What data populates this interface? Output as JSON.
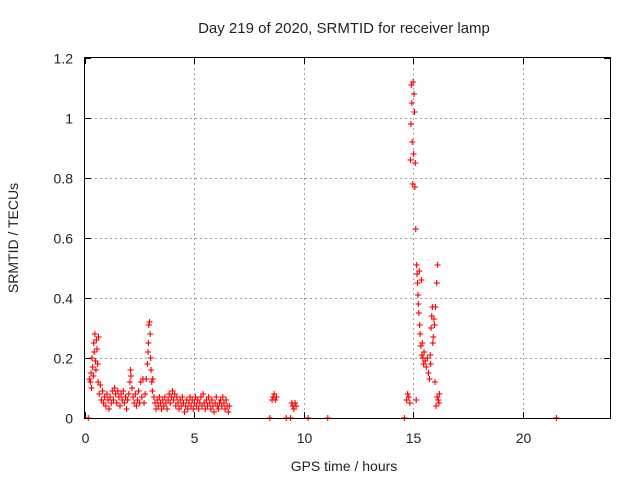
{
  "chart_data": {
    "type": "scatter",
    "title": "Day 219 of 2020, SRMTID for receiver lamp",
    "xlabel": "GPS time / hours",
    "ylabel": "SRMTID / TECUs",
    "xlim": [
      0,
      24
    ],
    "ylim": [
      0,
      1.2
    ],
    "x_ticks": [
      0,
      5,
      10,
      15,
      20
    ],
    "y_ticks": [
      0,
      0.2,
      0.4,
      0.6,
      0.8,
      1.0,
      1.2
    ],
    "x_tick_labels": [
      "0",
      "5",
      "10",
      "15",
      "20"
    ],
    "y_tick_labels": [
      "0",
      "0.2",
      "0.4",
      "0.6",
      "0.8",
      "1",
      "1.2"
    ],
    "grid": true,
    "marker": "plus",
    "series": [
      {
        "name": "SRMTID",
        "color": "#ff0000",
        "points": [
          [
            0.15,
            0.0
          ],
          [
            0.2,
            0.13
          ],
          [
            0.25,
            0.12
          ],
          [
            0.28,
            0.15
          ],
          [
            0.3,
            0.1
          ],
          [
            0.32,
            0.2
          ],
          [
            0.35,
            0.17
          ],
          [
            0.38,
            0.14
          ],
          [
            0.4,
            0.25
          ],
          [
            0.42,
            0.22
          ],
          [
            0.45,
            0.28
          ],
          [
            0.48,
            0.19
          ],
          [
            0.5,
            0.16
          ],
          [
            0.52,
            0.26
          ],
          [
            0.55,
            0.23
          ],
          [
            0.58,
            0.18
          ],
          [
            0.6,
            0.12
          ],
          [
            0.62,
            0.27
          ],
          [
            0.65,
            0.08
          ],
          [
            0.7,
            0.11
          ],
          [
            0.75,
            0.06
          ],
          [
            0.8,
            0.09
          ],
          [
            0.85,
            0.05
          ],
          [
            0.9,
            0.07
          ],
          [
            0.95,
            0.04
          ],
          [
            1.0,
            0.08
          ],
          [
            1.05,
            0.06
          ],
          [
            1.1,
            0.03
          ],
          [
            1.15,
            0.07
          ],
          [
            1.2,
            0.05
          ],
          [
            1.25,
            0.09
          ],
          [
            1.3,
            0.06
          ],
          [
            1.35,
            0.1
          ],
          [
            1.4,
            0.08
          ],
          [
            1.45,
            0.05
          ],
          [
            1.5,
            0.09
          ],
          [
            1.55,
            0.07
          ],
          [
            1.6,
            0.04
          ],
          [
            1.65,
            0.08
          ],
          [
            1.7,
            0.06
          ],
          [
            1.75,
            0.09
          ],
          [
            1.8,
            0.05
          ],
          [
            1.85,
            0.07
          ],
          [
            1.9,
            0.03
          ],
          [
            1.95,
            0.06
          ],
          [
            2.0,
            0.08
          ],
          [
            2.05,
            0.12
          ],
          [
            2.08,
            0.16
          ],
          [
            2.1,
            0.14
          ],
          [
            2.15,
            0.1
          ],
          [
            2.2,
            0.07
          ],
          [
            2.25,
            0.05
          ],
          [
            2.3,
            0.08
          ],
          [
            2.35,
            0.04
          ],
          [
            2.4,
            0.06
          ],
          [
            2.45,
            0.09
          ],
          [
            2.5,
            0.05
          ],
          [
            2.55,
            0.12
          ],
          [
            2.6,
            0.07
          ],
          [
            2.65,
            0.13
          ],
          [
            2.7,
            0.05
          ],
          [
            2.75,
            0.08
          ],
          [
            2.8,
            0.13
          ],
          [
            2.85,
            0.18
          ],
          [
            2.88,
            0.22
          ],
          [
            2.9,
            0.25
          ],
          [
            2.92,
            0.31
          ],
          [
            2.95,
            0.32
          ],
          [
            2.98,
            0.28
          ],
          [
            3.0,
            0.2
          ],
          [
            3.02,
            0.16
          ],
          [
            3.05,
            0.12
          ],
          [
            3.08,
            0.09
          ],
          [
            3.1,
            0.13
          ],
          [
            3.15,
            0.07
          ],
          [
            3.2,
            0.05
          ],
          [
            3.25,
            0.03
          ],
          [
            3.3,
            0.06
          ],
          [
            3.35,
            0.04
          ],
          [
            3.4,
            0.07
          ],
          [
            3.45,
            0.05
          ],
          [
            3.5,
            0.03
          ],
          [
            3.55,
            0.06
          ],
          [
            3.6,
            0.04
          ],
          [
            3.65,
            0.07
          ],
          [
            3.7,
            0.05
          ],
          [
            3.75,
            0.03
          ],
          [
            3.8,
            0.06
          ],
          [
            3.85,
            0.08
          ],
          [
            3.9,
            0.05
          ],
          [
            3.95,
            0.07
          ],
          [
            4.0,
            0.09
          ],
          [
            4.05,
            0.06
          ],
          [
            4.1,
            0.08
          ],
          [
            4.15,
            0.04
          ],
          [
            4.2,
            0.07
          ],
          [
            4.25,
            0.05
          ],
          [
            4.3,
            0.03
          ],
          [
            4.35,
            0.06
          ],
          [
            4.4,
            0.04
          ],
          [
            4.45,
            0.07
          ],
          [
            4.5,
            0.05
          ],
          [
            4.55,
            0.02
          ],
          [
            4.6,
            0.04
          ],
          [
            4.65,
            0.06
          ],
          [
            4.7,
            0.03
          ],
          [
            4.75,
            0.05
          ],
          [
            4.8,
            0.07
          ],
          [
            4.85,
            0.04
          ],
          [
            4.9,
            0.06
          ],
          [
            4.95,
            0.03
          ],
          [
            5.0,
            0.05
          ],
          [
            5.05,
            0.07
          ],
          [
            5.1,
            0.04
          ],
          [
            5.15,
            0.06
          ],
          [
            5.2,
            0.03
          ],
          [
            5.25,
            0.05
          ],
          [
            5.3,
            0.07
          ],
          [
            5.35,
            0.04
          ],
          [
            5.4,
            0.08
          ],
          [
            5.45,
            0.05
          ],
          [
            5.5,
            0.03
          ],
          [
            5.55,
            0.06
          ],
          [
            5.6,
            0.04
          ],
          [
            5.65,
            0.07
          ],
          [
            5.7,
            0.05
          ],
          [
            5.75,
            0.03
          ],
          [
            5.8,
            0.06
          ],
          [
            5.85,
            0.04
          ],
          [
            5.9,
            0.02
          ],
          [
            5.95,
            0.05
          ],
          [
            6.0,
            0.07
          ],
          [
            6.05,
            0.04
          ],
          [
            6.1,
            0.03
          ],
          [
            6.15,
            0.05
          ],
          [
            6.2,
            0.06
          ],
          [
            6.25,
            0.04
          ],
          [
            6.3,
            0.07
          ],
          [
            6.35,
            0.05
          ],
          [
            6.4,
            0.03
          ],
          [
            6.45,
            0.06
          ],
          [
            6.5,
            0.04
          ],
          [
            6.55,
            0.02
          ],
          [
            6.6,
            0.04
          ],
          [
            8.45,
            0.0
          ],
          [
            8.55,
            0.06
          ],
          [
            8.6,
            0.07
          ],
          [
            8.65,
            0.08
          ],
          [
            8.7,
            0.06
          ],
          [
            8.75,
            0.07
          ],
          [
            9.2,
            0.0
          ],
          [
            9.4,
            0.0
          ],
          [
            9.45,
            0.05
          ],
          [
            9.5,
            0.04
          ],
          [
            9.55,
            0.03
          ],
          [
            9.6,
            0.05
          ],
          [
            9.65,
            0.04
          ],
          [
            10.2,
            0.0
          ],
          [
            11.1,
            0.0
          ],
          [
            14.6,
            0.0
          ],
          [
            14.7,
            0.06
          ],
          [
            14.75,
            0.08
          ],
          [
            14.8,
            0.07
          ],
          [
            14.85,
            0.05
          ],
          [
            14.88,
            0.86
          ],
          [
            14.9,
            0.98
          ],
          [
            14.92,
            1.11
          ],
          [
            14.94,
            1.05
          ],
          [
            14.96,
            0.92
          ],
          [
            14.98,
            0.78
          ],
          [
            15.0,
            1.12
          ],
          [
            15.02,
            0.88
          ],
          [
            15.04,
            1.08
          ],
          [
            15.06,
            1.02
          ],
          [
            15.08,
            0.77
          ],
          [
            15.1,
            0.85
          ],
          [
            15.12,
            0.63
          ],
          [
            15.14,
            0.06
          ],
          [
            15.16,
            0.51
          ],
          [
            15.18,
            0.48
          ],
          [
            15.2,
            0.45
          ],
          [
            15.22,
            0.41
          ],
          [
            15.24,
            0.38
          ],
          [
            15.26,
            0.35
          ],
          [
            15.28,
            0.49
          ],
          [
            15.3,
            0.31
          ],
          [
            15.32,
            0.28
          ],
          [
            15.35,
            0.24
          ],
          [
            15.38,
            0.46
          ],
          [
            15.4,
            0.21
          ],
          [
            15.42,
            0.25
          ],
          [
            15.45,
            0.2
          ],
          [
            15.48,
            0.18
          ],
          [
            15.5,
            0.22
          ],
          [
            15.55,
            0.19
          ],
          [
            15.6,
            0.17
          ],
          [
            15.65,
            0.2
          ],
          [
            15.7,
            0.15
          ],
          [
            15.75,
            0.13
          ],
          [
            15.78,
            0.21
          ],
          [
            15.8,
            0.18
          ],
          [
            15.82,
            0.3
          ],
          [
            15.85,
            0.34
          ],
          [
            15.88,
            0.37
          ],
          [
            15.9,
            0.25
          ],
          [
            15.92,
            0.27
          ],
          [
            15.95,
            0.33
          ],
          [
            15.98,
            0.31
          ],
          [
            16.0,
            0.12
          ],
          [
            16.02,
            0.37
          ],
          [
            16.05,
            0.04
          ],
          [
            16.08,
            0.45
          ],
          [
            16.1,
            0.07
          ],
          [
            16.12,
            0.51
          ],
          [
            16.15,
            0.06
          ],
          [
            16.18,
            0.05
          ],
          [
            16.2,
            0.08
          ],
          [
            21.55,
            0.0
          ]
        ]
      }
    ]
  }
}
